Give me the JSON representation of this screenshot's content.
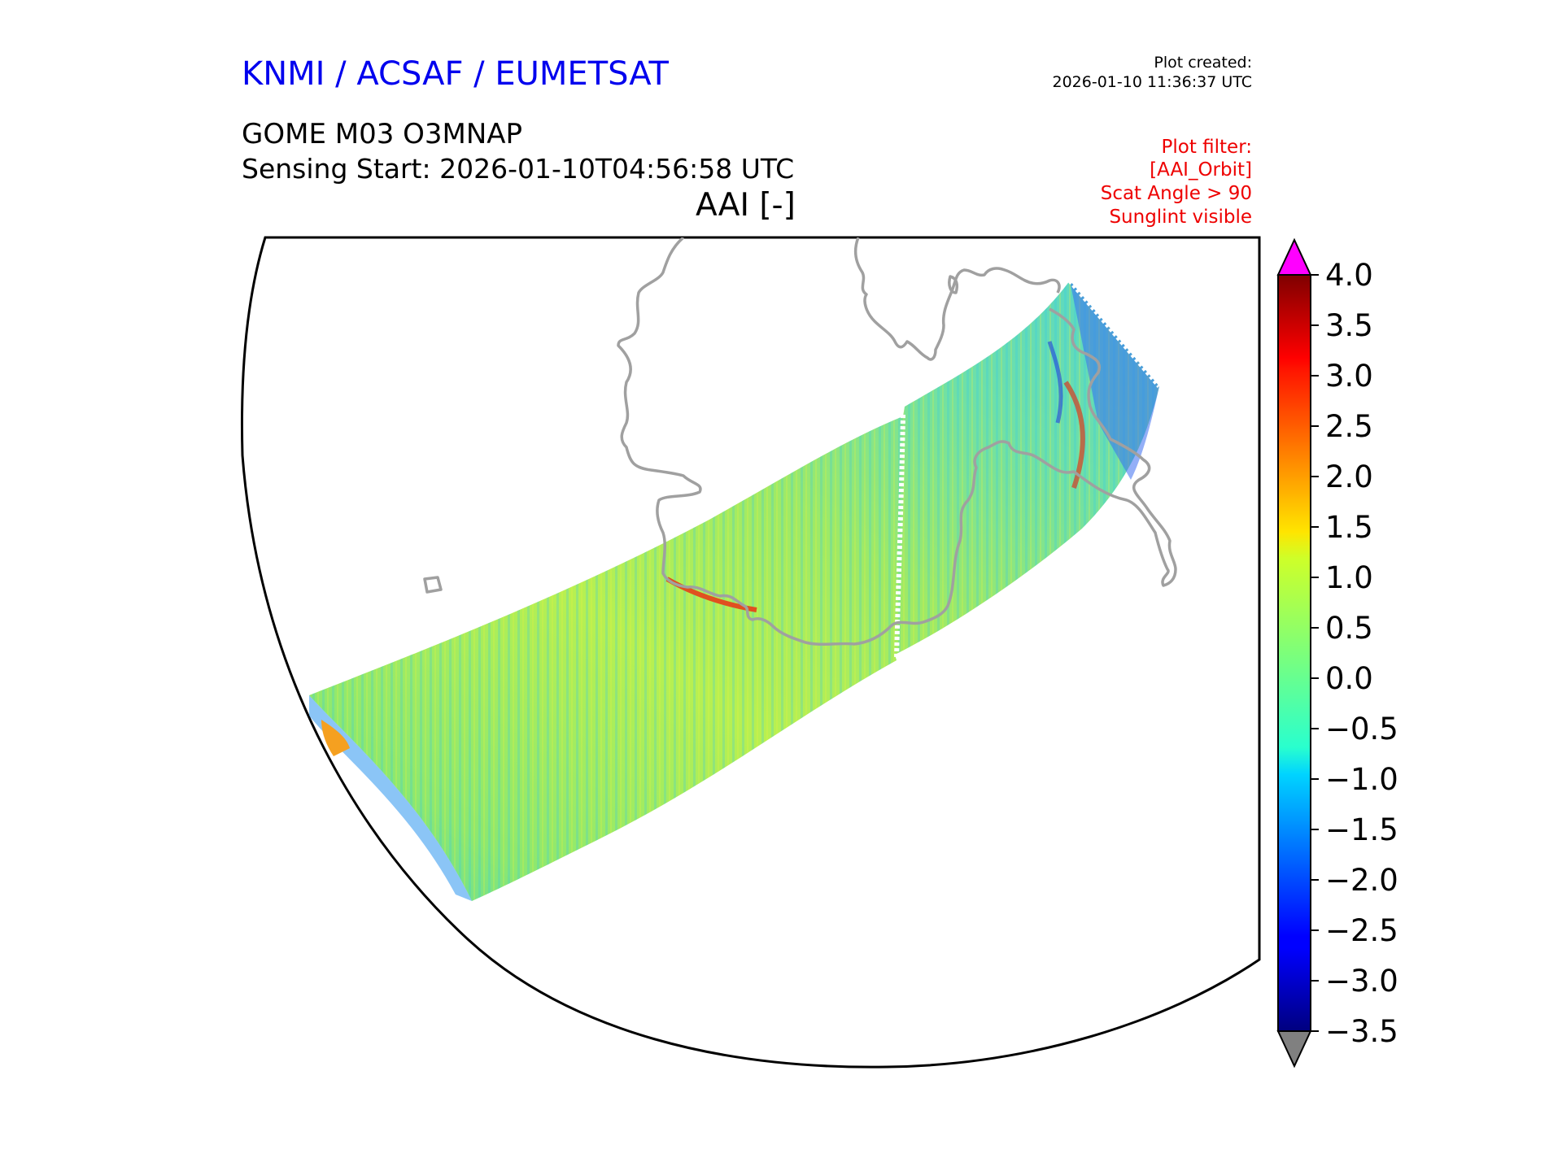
{
  "header": {
    "agency": "KNMI / ACSAF / EUMETSAT",
    "plot_created_label": "Plot created:",
    "plot_created_time": "2026-01-10 11:36:37 UTC",
    "product": "GOME M03 O3MNAP",
    "sensing_start": "Sensing Start: 2026-01-10T04:56:58 UTC",
    "variable": "AAI [-]"
  },
  "plot_filter": {
    "lines": [
      "Plot filter:",
      "[AAI_Orbit]",
      "Scat Angle > 90",
      "Sunglint visible"
    ]
  },
  "colorbar": {
    "min": -3.5,
    "max": 4.0,
    "ticks": [
      "4.0",
      "3.5",
      "3.0",
      "2.5",
      "2.0",
      "1.5",
      "1.0",
      "0.5",
      "0.0",
      "−0.5",
      "−1.0",
      "−1.5",
      "−2.0",
      "−2.5",
      "−3.0",
      "−3.5"
    ],
    "tick_values": [
      4.0,
      3.5,
      3.0,
      2.5,
      2.0,
      1.5,
      1.0,
      0.5,
      0.0,
      -0.5,
      -1.0,
      -1.5,
      -2.0,
      -2.5,
      -3.0,
      -3.5
    ],
    "colormap": "jet",
    "over_color": "#ff00ff",
    "under_color": "#808080"
  },
  "map": {
    "coastline_color": "#a0a0a0",
    "frame_color": "#000000"
  }
}
